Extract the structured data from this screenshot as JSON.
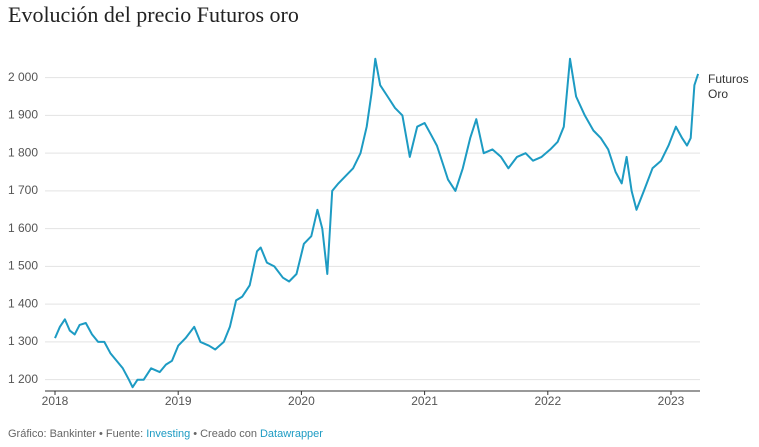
{
  "chart_data": {
    "type": "line",
    "title": "Evolución del precio Futuros oro",
    "x": [
      2018.0,
      2018.04,
      2018.08,
      2018.12,
      2018.16,
      2018.2,
      2018.25,
      2018.3,
      2018.35,
      2018.4,
      2018.45,
      2018.5,
      2018.55,
      2018.6,
      2018.63,
      2018.67,
      2018.72,
      2018.78,
      2018.85,
      2018.9,
      2018.95,
      2019.0,
      2019.06,
      2019.13,
      2019.18,
      2019.25,
      2019.3,
      2019.37,
      2019.42,
      2019.47,
      2019.52,
      2019.58,
      2019.64,
      2019.67,
      2019.72,
      2019.78,
      2019.85,
      2019.9,
      2019.96,
      2020.02,
      2020.08,
      2020.13,
      2020.17,
      2020.21,
      2020.25,
      2020.3,
      2020.36,
      2020.42,
      2020.48,
      2020.53,
      2020.57,
      2020.6,
      2020.64,
      2020.7,
      2020.76,
      2020.82,
      2020.88,
      2020.94,
      2021.0,
      2021.05,
      2021.1,
      2021.15,
      2021.19,
      2021.25,
      2021.31,
      2021.37,
      2021.42,
      2021.48,
      2021.55,
      2021.62,
      2021.68,
      2021.75,
      2021.82,
      2021.88,
      2021.95,
      2022.02,
      2022.08,
      2022.13,
      2022.18,
      2022.23,
      2022.3,
      2022.37,
      2022.43,
      2022.49,
      2022.55,
      2022.6,
      2022.64,
      2022.68,
      2022.72,
      2022.78,
      2022.85,
      2022.92,
      2022.98,
      2023.04,
      2023.09,
      2023.13,
      2023.16,
      2023.19,
      2023.22
    ],
    "series": [
      {
        "name": "Futuros Oro",
        "color": "#1d9bc3",
        "values": [
          1310,
          1340,
          1360,
          1330,
          1320,
          1345,
          1350,
          1320,
          1300,
          1300,
          1270,
          1250,
          1230,
          1200,
          1180,
          1200,
          1200,
          1230,
          1220,
          1240,
          1250,
          1290,
          1310,
          1340,
          1300,
          1290,
          1280,
          1300,
          1340,
          1410,
          1420,
          1450,
          1540,
          1550,
          1510,
          1500,
          1470,
          1460,
          1480,
          1560,
          1580,
          1650,
          1600,
          1480,
          1700,
          1720,
          1740,
          1760,
          1800,
          1870,
          1960,
          2050,
          1980,
          1950,
          1920,
          1900,
          1790,
          1870,
          1880,
          1850,
          1820,
          1770,
          1730,
          1700,
          1760,
          1840,
          1890,
          1800,
          1810,
          1790,
          1760,
          1790,
          1800,
          1780,
          1790,
          1810,
          1830,
          1870,
          2050,
          1950,
          1900,
          1860,
          1840,
          1810,
          1750,
          1720,
          1790,
          1700,
          1650,
          1700,
          1760,
          1780,
          1820,
          1870,
          1840,
          1820,
          1840,
          1980,
          2010
        ]
      }
    ],
    "xlim": [
      2018.0,
      2023.3
    ],
    "xticks": [
      2018,
      2019,
      2020,
      2021,
      2022,
      2023
    ],
    "ylim": [
      1170,
      2060
    ],
    "yticks": [
      {
        "value": 1200,
        "label": "1 200"
      },
      {
        "value": 1300,
        "label": "1 300"
      },
      {
        "value": 1400,
        "label": "1 400"
      },
      {
        "value": 1500,
        "label": "1 500"
      },
      {
        "value": 1600,
        "label": "1 600"
      },
      {
        "value": 1700,
        "label": "1 700"
      },
      {
        "value": 1800,
        "label": "1 800"
      },
      {
        "value": 1900,
        "label": "1 900"
      },
      {
        "value": 2000,
        "label": "2 000"
      }
    ],
    "grid": true
  },
  "footer": [
    "Gráfico: Bankinter",
    "•",
    "Fuente:",
    "Investing",
    "•",
    "Creado con",
    "Datawrapper"
  ]
}
